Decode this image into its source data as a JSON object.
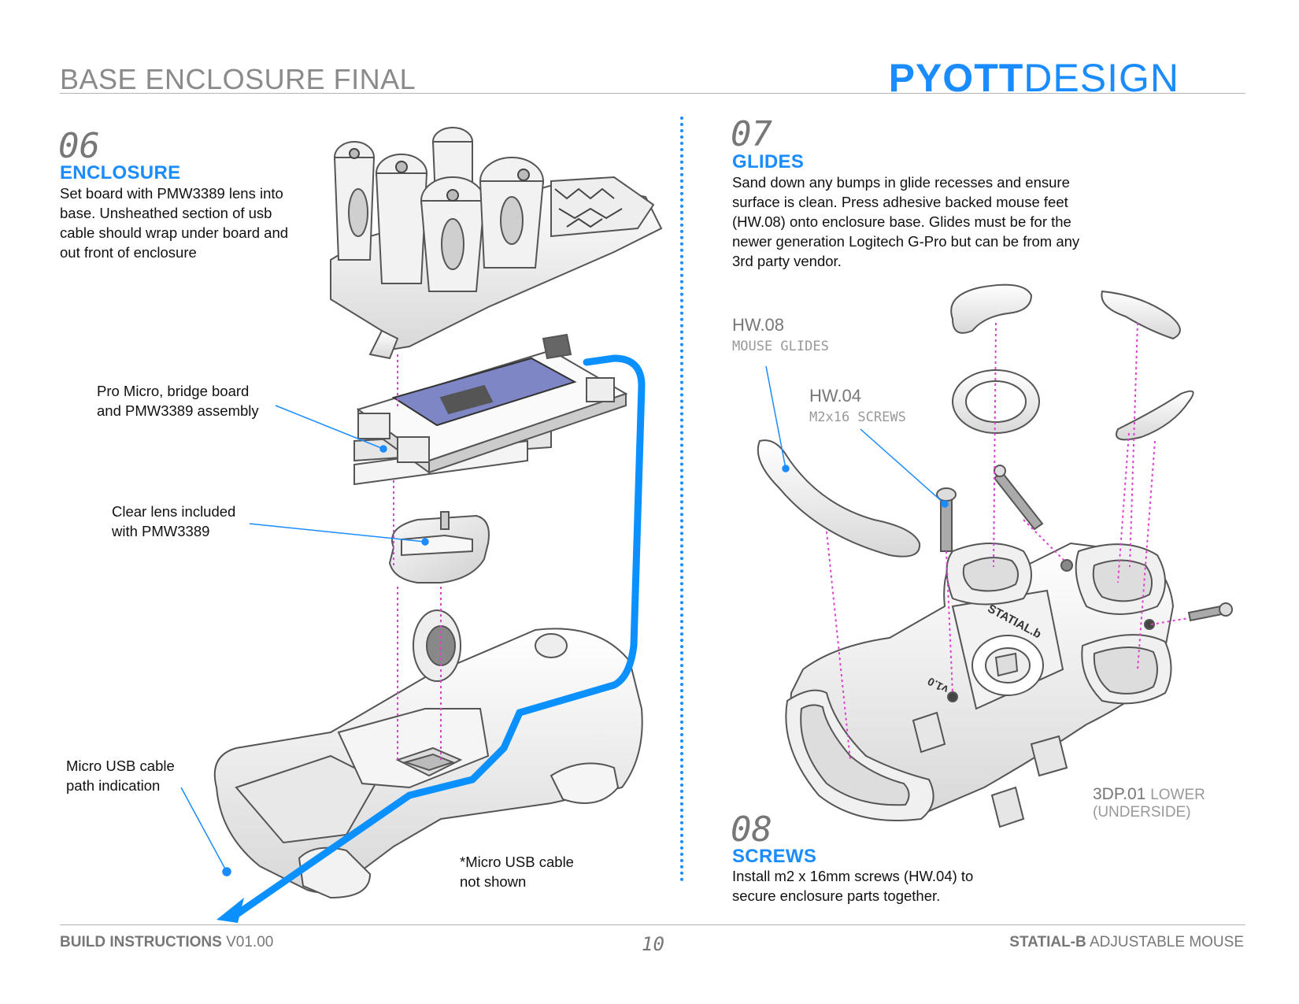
{
  "header": {
    "title": "BASE ENCLOSURE FINAL",
    "brand_bold": "PYOTT",
    "brand_light": "DESIGN"
  },
  "step06": {
    "number": "06",
    "title": "ENCLOSURE",
    "lines": [
      "Set board with PMW3389 lens into",
      "base. Unsheathed section of usb",
      "cable should wrap under board and",
      "out front of enclosure"
    ]
  },
  "callouts_left": {
    "board": [
      "Pro Micro, bridge board",
      "and PMW3389 assembly"
    ],
    "lens": [
      "Clear lens included",
      "with PMW3389"
    ],
    "cable": [
      "Micro USB cable",
      "path indication"
    ],
    "note": [
      "*Micro USB cable",
      "not shown"
    ]
  },
  "step07": {
    "number": "07",
    "title": "GLIDES",
    "lines": [
      "Sand down any bumps in glide recesses and ensure",
      "surface is clean. Press adhesive backed mouse feet",
      "(HW.08) onto enclosure base. Glides must be for the",
      "newer generation Logitech G-Pro but can be from any",
      "3rd party vendor."
    ]
  },
  "hw08": {
    "code": "HW.08",
    "desc": "MOUSE GLIDES"
  },
  "hw04": {
    "code": "HW.04",
    "desc": "M2x16 SCREWS"
  },
  "part_3dp01": {
    "code": "3DP.01",
    "suffix": "LOWER",
    "line2": "(UNDERSIDE)"
  },
  "step08": {
    "number": "08",
    "title": "SCREWS",
    "lines": [
      "Install m2 x 16mm screws (HW.04) to",
      "secure enclosure parts together."
    ]
  },
  "model_labels": {
    "brand_stamp": "STATIAL.b",
    "version_stamp": "v1.0"
  },
  "footer": {
    "left_bold": "BUILD INSTRUCTIONS",
    "left_version": "V01.00",
    "page": "10",
    "right_bold": "STATIAL-B",
    "right_rest": "ADJUSTABLE MOUSE"
  },
  "colors": {
    "accent": "#1a8cff",
    "guide_line": "#e040d0",
    "cable": "#0a90ff"
  }
}
